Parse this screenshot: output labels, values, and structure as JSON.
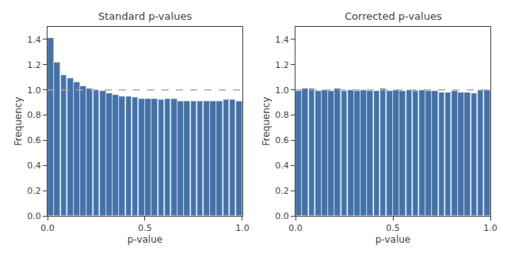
{
  "chart_data": [
    {
      "type": "histogram",
      "title": "Standard p-values",
      "x_label": "p-value",
      "y_label": "Frequency",
      "bins": [
        0,
        0.03333333333333333,
        0.06666666666666667,
        0.1,
        0.13333333333333333,
        0.16666666666666666,
        0.2,
        0.23333333333333334,
        0.26666666666666666,
        0.3,
        0.3333333333333333,
        0.36666666666666664,
        0.4,
        0.43333333333333335,
        0.4666666666666667,
        0.5,
        0.5333333333333333,
        0.5666666666666667,
        0.6,
        0.6333333333333333,
        0.6666666666666666,
        0.7,
        0.7333333333333333,
        0.7666666666666667,
        0.8,
        0.8333333333333334,
        0.8666666666666667,
        0.9,
        0.9333333333333333,
        0.9666666666666667,
        1
      ],
      "values": [
        1.41,
        1.22,
        1.12,
        1.09,
        1.06,
        1.03,
        1.01,
        1.0,
        0.99,
        0.97,
        0.96,
        0.95,
        0.95,
        0.94,
        0.93,
        0.93,
        0.93,
        0.92,
        0.93,
        0.93,
        0.91,
        0.91,
        0.91,
        0.91,
        0.91,
        0.91,
        0.91,
        0.92,
        0.92,
        0.91
      ],
      "color": "#4472a8",
      "hline": {
        "y": 1.0,
        "color": "#aaaaaa",
        "line_style": "dashed"
      },
      "xlim": [
        0.0,
        1.0
      ],
      "xticks": [
        {
          "value": 0,
          "label": "0.0"
        },
        {
          "value": 0.5,
          "label": "0.5"
        },
        {
          "value": 1,
          "label": "1.0"
        }
      ],
      "ylim": [
        0.0,
        1.5
      ],
      "yticks": [
        {
          "value": 0,
          "label": "0.0"
        },
        0.2,
        0.4,
        0.6,
        0.8,
        {
          "value": 1,
          "label": "1.0"
        },
        1.2,
        1.4
      ],
      "grid": false
    },
    {
      "type": "histogram",
      "title": "Corrected p-values",
      "x_label": "p-value",
      "y_label": "Frequency",
      "bins": [
        0,
        0.03333333333333333,
        0.06666666666666667,
        0.1,
        0.13333333333333333,
        0.16666666666666666,
        0.2,
        0.23333333333333334,
        0.26666666666666666,
        0.3,
        0.3333333333333333,
        0.36666666666666664,
        0.4,
        0.43333333333333335,
        0.4666666666666667,
        0.5,
        0.5333333333333333,
        0.5666666666666667,
        0.6,
        0.6333333333333333,
        0.6666666666666666,
        0.7,
        0.7333333333333333,
        0.7666666666666667,
        0.8,
        0.8333333333333334,
        0.8666666666666667,
        0.9,
        0.9333333333333333,
        0.9666666666666667,
        1
      ],
      "values": [
        0.99,
        1.01,
        1.01,
        0.99,
        1.0,
        0.99,
        1.01,
        0.99,
        1.0,
        0.99,
        1.0,
        0.99,
        0.99,
        1.01,
        0.99,
        1.0,
        0.99,
        1.0,
        0.99,
        1.0,
        0.99,
        0.99,
        0.98,
        0.98,
        0.99,
        0.98,
        0.98,
        0.97,
        1.0,
        1.0
      ],
      "color": "#4472a8",
      "hline": {
        "y": 1.0,
        "color": "#aaaaaa",
        "line_style": "dashed"
      },
      "xlim": [
        0.0,
        1.0
      ],
      "xticks": [
        {
          "value": 0,
          "label": "0.0"
        },
        {
          "value": 0.5,
          "label": "0.5"
        },
        {
          "value": 1,
          "label": "1.0"
        }
      ],
      "ylim": [
        0.0,
        1.5
      ],
      "yticks": [
        {
          "value": 0,
          "label": "0.0"
        },
        0.2,
        0.4,
        0.6,
        0.8,
        {
          "value": 1,
          "label": "1.0"
        },
        1.2,
        1.4
      ],
      "grid": false
    }
  ]
}
